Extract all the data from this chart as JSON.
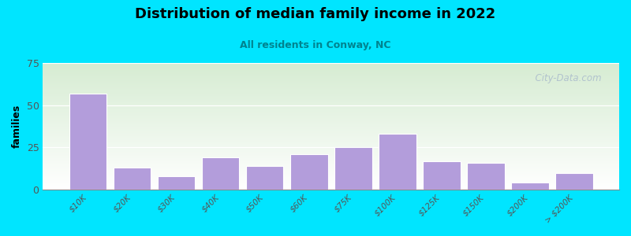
{
  "title": "Distribution of median family income in 2022",
  "subtitle": "All residents in Conway, NC",
  "ylabel": "families",
  "categories": [
    "$10K",
    "$20K",
    "$30K",
    "$40K",
    "$50K",
    "$60K",
    "$75K",
    "$100K",
    "$125K",
    "$150K",
    "$200K",
    "> $200K"
  ],
  "values": [
    57,
    13,
    8,
    19,
    14,
    21,
    25,
    33,
    17,
    16,
    4,
    10
  ],
  "bar_color": "#b39ddb",
  "bar_edge_color": "#ffffff",
  "background_outer": "#00e5ff",
  "background_inner_top": "#d6ecd2",
  "background_inner_bottom": "#ffffff",
  "title_color": "#000000",
  "subtitle_color": "#00838f",
  "ylabel_color": "#000000",
  "tick_color": "#555555",
  "ylim": [
    0,
    75
  ],
  "yticks": [
    0,
    25,
    50,
    75
  ],
  "watermark": "  City-Data.com",
  "watermark_color": "#aabbcc"
}
